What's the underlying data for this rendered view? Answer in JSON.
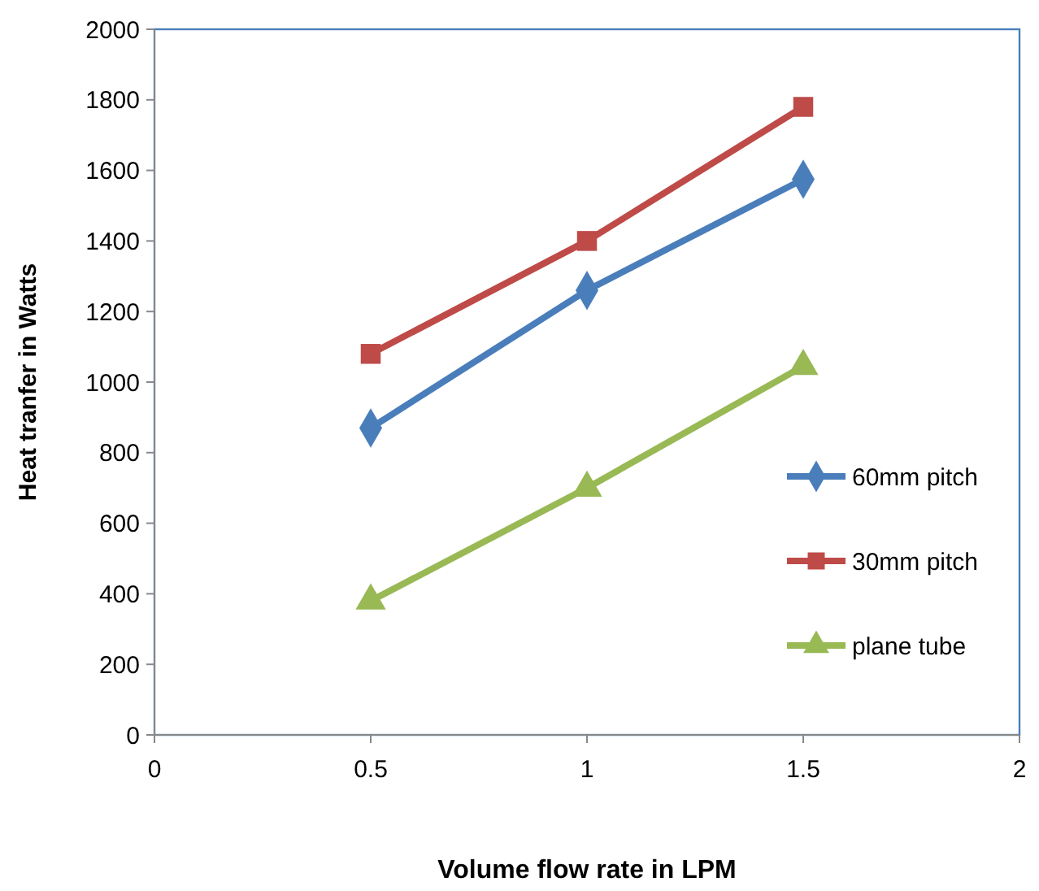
{
  "chart_data": {
    "type": "line",
    "xlabel": "Volume flow rate in LPM",
    "ylabel": "Heat tranfer in  Watts",
    "x": [
      0.5,
      1,
      1.5
    ],
    "series": [
      {
        "name": "60mm pitch",
        "color": "#4a7ebb",
        "marker": "diamond",
        "values": [
          870,
          1260,
          1575
        ]
      },
      {
        "name": "30mm pitch",
        "color": "#be4b48",
        "marker": "square",
        "values": [
          1080,
          1400,
          1780
        ]
      },
      {
        "name": "plane tube",
        "color": "#98b954",
        "marker": "triangle",
        "values": [
          380,
          700,
          1045
        ]
      }
    ],
    "xlim": [
      0,
      2
    ],
    "xticks": [
      0,
      0.5,
      1,
      1.5,
      2
    ],
    "ylim": [
      0,
      2000
    ],
    "yticks": [
      0,
      200,
      400,
      600,
      800,
      1000,
      1200,
      1400,
      1600,
      1800,
      2000
    ],
    "grid": false,
    "legend": "right",
    "line_style": "solid"
  }
}
